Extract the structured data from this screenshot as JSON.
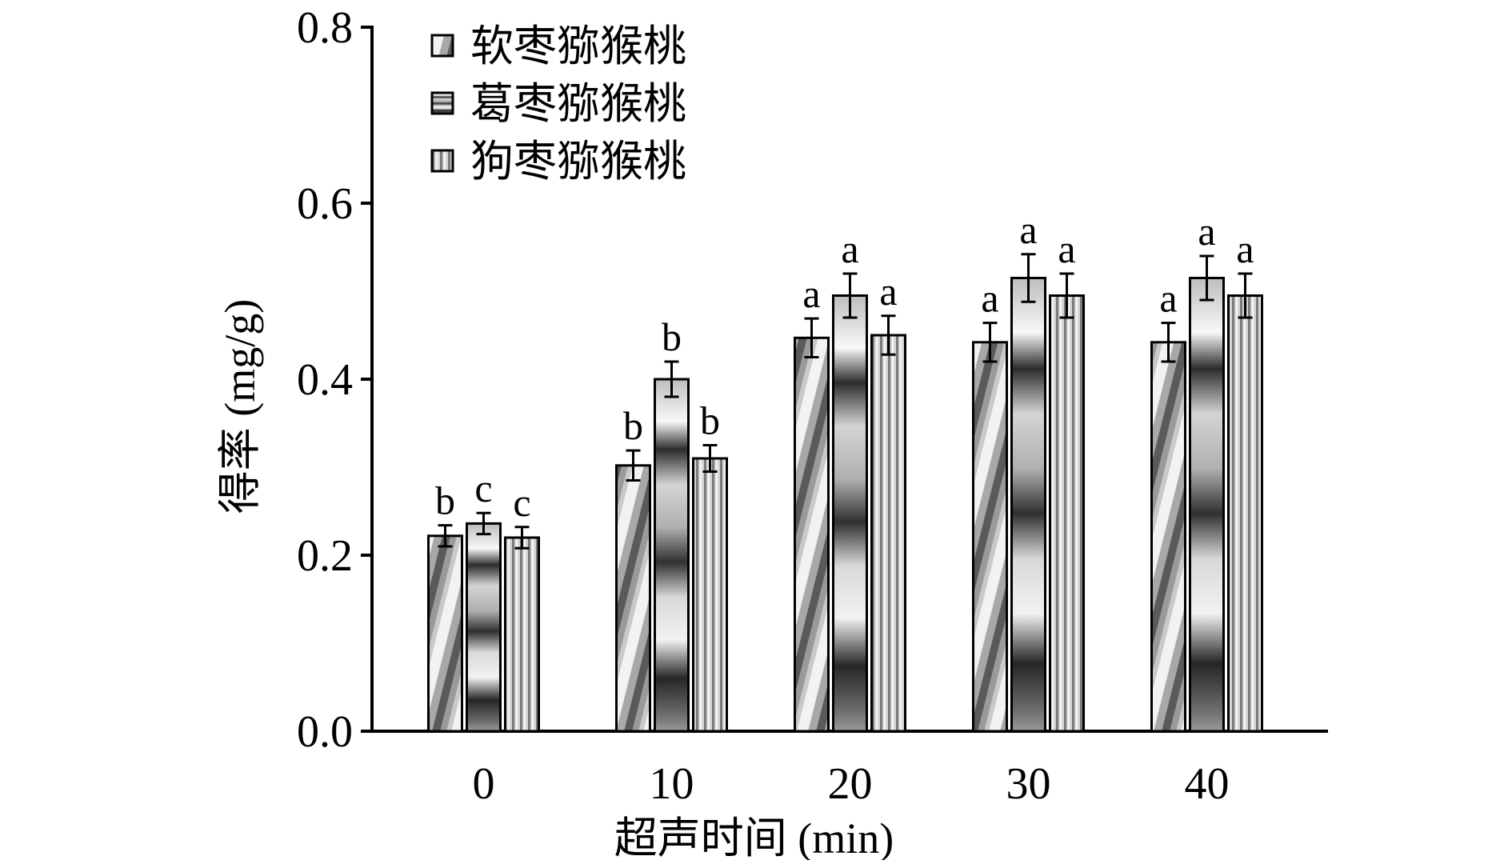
{
  "chart_data": {
    "type": "bar",
    "xlabel": "超声时间 (min)",
    "ylabel": "得率 (mg/g)",
    "ylim": [
      0,
      0.8
    ],
    "yticks": [
      "0.0",
      "0.2",
      "0.4",
      "0.6",
      "0.8"
    ],
    "ytick_values": [
      0,
      0.2,
      0.4,
      0.6,
      0.8
    ],
    "categories": [
      "0",
      "10",
      "20",
      "30",
      "40"
    ],
    "legend_position": "top-left",
    "grid": false,
    "series": [
      {
        "name": "软枣猕猴桃",
        "pattern": "diagonal-stripes",
        "values": [
          0.222,
          0.302,
          0.447,
          0.442,
          0.442
        ],
        "errors": [
          0.012,
          0.017,
          0.022,
          0.022,
          0.022
        ],
        "labels": [
          "b",
          "b",
          "a",
          "a",
          "a"
        ]
      },
      {
        "name": "葛枣猕猴桃",
        "pattern": "horizontal-stripes",
        "values": [
          0.236,
          0.4,
          0.495,
          0.515,
          0.515
        ],
        "errors": [
          0.012,
          0.02,
          0.025,
          0.027,
          0.025
        ],
        "labels": [
          "c",
          "b",
          "a",
          "a",
          "a"
        ]
      },
      {
        "name": "狗枣猕猴桃",
        "pattern": "vertical-stripes",
        "values": [
          0.22,
          0.31,
          0.45,
          0.495,
          0.495
        ],
        "errors": [
          0.012,
          0.015,
          0.022,
          0.025,
          0.025
        ],
        "labels": [
          "c",
          "b",
          "a",
          "a",
          "a"
        ]
      }
    ]
  }
}
